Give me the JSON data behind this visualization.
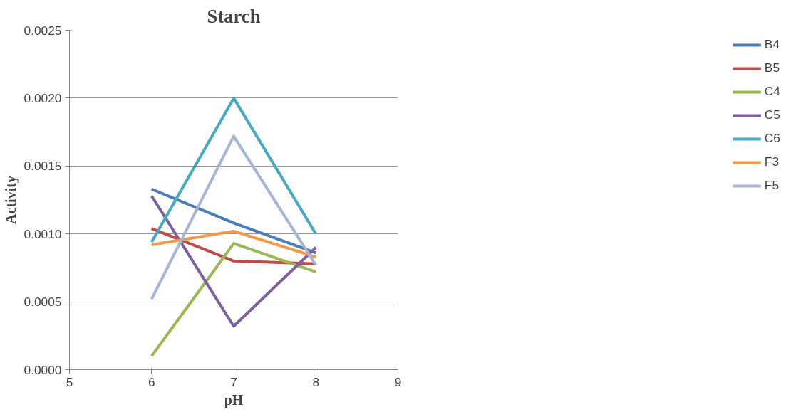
{
  "chart_data": {
    "type": "line",
    "title": "Starch",
    "xlabel": "pH",
    "ylabel": "Activity",
    "x": [
      6,
      7,
      8
    ],
    "xlim": [
      5,
      9
    ],
    "xticks": [
      5,
      6,
      7,
      8,
      9
    ],
    "ylim": [
      0,
      0.0025
    ],
    "yticks": [
      {
        "value": 0,
        "label": "0.0000"
      },
      {
        "value": 0.0005,
        "label": "0.0005"
      },
      {
        "value": 0.001,
        "label": "0.0010"
      },
      {
        "value": 0.0015,
        "label": "0.0015"
      },
      {
        "value": 0.002,
        "label": "0.0020"
      },
      {
        "value": 0.0025,
        "label": "0.0025"
      }
    ],
    "grid": "y",
    "legend": "right",
    "marker": "none",
    "line_style": "solid",
    "series": [
      {
        "name": "B4",
        "color": "#4a7ebb",
        "values": [
          0.00133,
          0.00108,
          0.00086
        ]
      },
      {
        "name": "B5",
        "color": "#be4b48",
        "values": [
          0.00104,
          0.0008,
          0.00078
        ]
      },
      {
        "name": "C4",
        "color": "#98b954",
        "values": [
          0.0001,
          0.00093,
          0.00072
        ]
      },
      {
        "name": "C5",
        "color": "#7d60a0",
        "values": [
          0.00128,
          0.00032,
          0.0009
        ]
      },
      {
        "name": "C6",
        "color": "#46aac5",
        "values": [
          0.00094,
          0.002,
          0.001
        ]
      },
      {
        "name": "F3",
        "color": "#f79646",
        "values": [
          0.00092,
          0.00102,
          0.00083
        ]
      },
      {
        "name": "F5",
        "color": "#a5b6d9",
        "values": [
          0.00052,
          0.00172,
          0.00077
        ]
      }
    ]
  }
}
